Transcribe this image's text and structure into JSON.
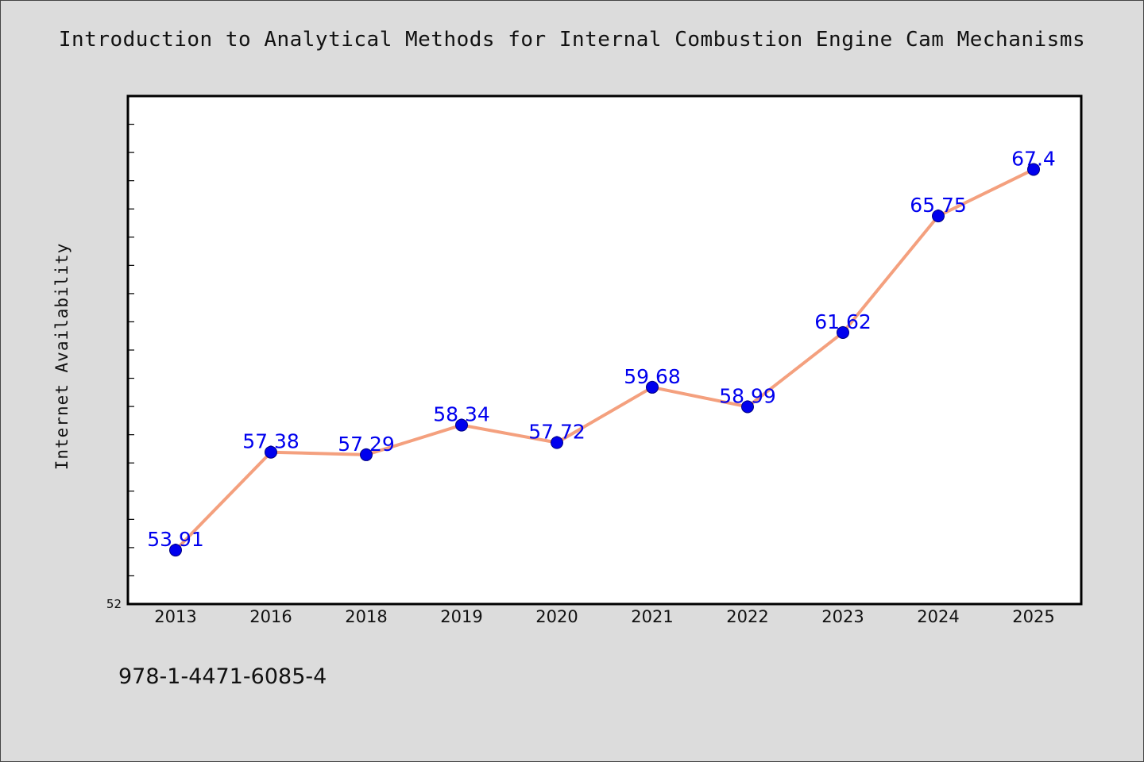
{
  "title": "Introduction to Analytical Methods for Internal Combustion Engine Cam Mechanisms",
  "footer_text": "978-1-4471-6085-4",
  "colors": {
    "background": "#dcdcdc",
    "plot_background": "#ffffff",
    "line": "#f4a07e",
    "marker": "#0000ee",
    "data_label": "#0000ee"
  },
  "chart_data": {
    "type": "line",
    "title": "Introduction to Analytical Methods for Internal Combustion Engine Cam Mechanisms",
    "xlabel": "",
    "ylabel": "Internet Availability",
    "categories": [
      "2013",
      "2016",
      "2018",
      "2019",
      "2020",
      "2021",
      "2022",
      "2023",
      "2024",
      "2025"
    ],
    "series": [
      {
        "values": [
          53.91,
          57.38,
          57.29,
          58.34,
          57.72,
          59.68,
          58.99,
          61.62,
          65.75,
          67.4
        ]
      }
    ],
    "data_labels": [
      "53.91",
      "57.38",
      "57.29",
      "58.34",
      "57.72",
      "59.68",
      "58.99",
      "61.62",
      "65.75",
      "67.4"
    ],
    "ylim": [
      52,
      70
    ],
    "ytick_labels": [
      "52"
    ],
    "ytick_step": 1,
    "grid": false,
    "legend": "none"
  }
}
